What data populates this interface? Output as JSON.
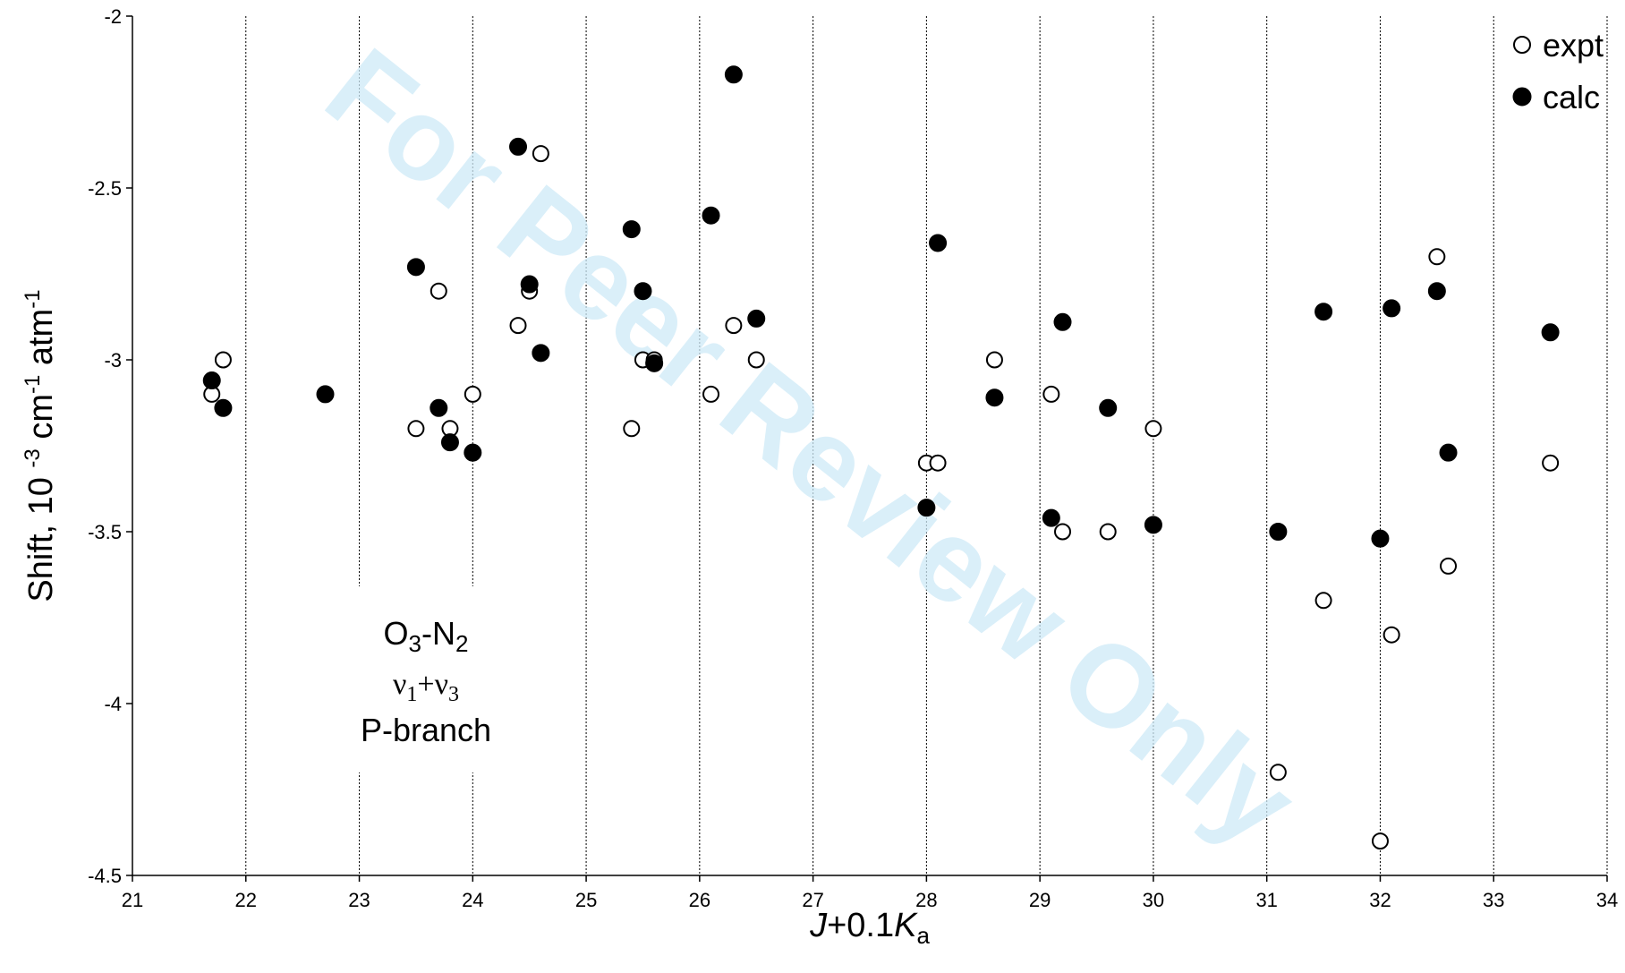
{
  "chart_data": {
    "type": "scatter",
    "xlabel_parts": [
      "J",
      "+0.1",
      "K",
      "a"
    ],
    "ylabel_parts": [
      "Shift, 10 ",
      "-3",
      " cm",
      "-1",
      " atm",
      "-1"
    ],
    "xlim": [
      21,
      34
    ],
    "ylim": [
      -4.5,
      -2
    ],
    "x_ticks": [
      21,
      22,
      23,
      24,
      25,
      26,
      27,
      28,
      29,
      30,
      31,
      32,
      33,
      34
    ],
    "y_ticks": [
      -2,
      -2.5,
      -3,
      -3.5,
      -4,
      -4.5
    ],
    "y_tick_labels": [
      "-2",
      "-2.5",
      "-3",
      "-3.5",
      "-4",
      "-4.5"
    ],
    "grid": "vertical dashed",
    "legend_position": "top-right",
    "series": [
      {
        "name": "expt",
        "marker": "open-circle",
        "points": [
          [
            21.7,
            -3.1
          ],
          [
            21.8,
            -3.0
          ],
          [
            23.5,
            -3.2
          ],
          [
            23.7,
            -2.8
          ],
          [
            23.8,
            -3.2
          ],
          [
            24.0,
            -3.1
          ],
          [
            24.4,
            -2.9
          ],
          [
            24.5,
            -2.8
          ],
          [
            24.6,
            -2.4
          ],
          [
            25.4,
            -3.2
          ],
          [
            25.5,
            -3.0
          ],
          [
            25.6,
            -3.0
          ],
          [
            26.1,
            -3.1
          ],
          [
            26.3,
            -2.9
          ],
          [
            26.5,
            -3.0
          ],
          [
            28.0,
            -3.3
          ],
          [
            28.1,
            -3.3
          ],
          [
            28.6,
            -3.0
          ],
          [
            29.1,
            -3.1
          ],
          [
            29.2,
            -3.5
          ],
          [
            29.6,
            -3.5
          ],
          [
            30.0,
            -3.2
          ],
          [
            31.1,
            -4.2
          ],
          [
            31.5,
            -3.7
          ],
          [
            32.0,
            -4.4
          ],
          [
            32.1,
            -3.8
          ],
          [
            32.5,
            -2.7
          ],
          [
            32.6,
            -3.6
          ],
          [
            33.5,
            -3.3
          ]
        ]
      },
      {
        "name": "calc",
        "marker": "filled-circle",
        "points": [
          [
            21.7,
            -3.06
          ],
          [
            21.8,
            -3.14
          ],
          [
            22.7,
            -3.1
          ],
          [
            23.5,
            -2.73
          ],
          [
            23.7,
            -3.14
          ],
          [
            23.8,
            -3.24
          ],
          [
            24.0,
            -3.27
          ],
          [
            24.4,
            -2.38
          ],
          [
            24.5,
            -2.78
          ],
          [
            24.6,
            -2.98
          ],
          [
            25.4,
            -2.62
          ],
          [
            25.5,
            -2.8
          ],
          [
            25.6,
            -3.01
          ],
          [
            26.1,
            -2.58
          ],
          [
            26.3,
            -2.17
          ],
          [
            26.5,
            -2.88
          ],
          [
            28.0,
            -3.43
          ],
          [
            28.1,
            -2.66
          ],
          [
            28.6,
            -3.11
          ],
          [
            29.1,
            -3.46
          ],
          [
            29.2,
            -2.89
          ],
          [
            29.6,
            -3.14
          ],
          [
            30.0,
            -3.48
          ],
          [
            31.1,
            -3.5
          ],
          [
            31.5,
            -2.86
          ],
          [
            32.0,
            -3.52
          ],
          [
            32.1,
            -2.85
          ],
          [
            32.5,
            -2.8
          ],
          [
            32.6,
            -3.27
          ],
          [
            33.5,
            -2.92
          ]
        ]
      }
    ],
    "annotation": {
      "molecule": [
        "O",
        "3",
        "-N",
        "2"
      ],
      "band": [
        "ν",
        "1",
        "+ν",
        "3"
      ],
      "branch": "P-branch"
    },
    "watermark": "For Peer Review Only"
  }
}
